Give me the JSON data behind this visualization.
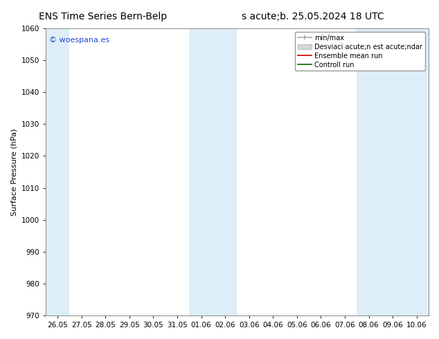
{
  "title_left": "ENS Time Series Bern-Belp",
  "title_right": "s acute;b. 25.05.2024 18 UTC",
  "ylabel": "Surface Pressure (hPa)",
  "ylim": [
    970,
    1060
  ],
  "yticks": [
    970,
    980,
    990,
    1000,
    1010,
    1020,
    1030,
    1040,
    1050,
    1060
  ],
  "x_labels": [
    "26.05",
    "27.05",
    "28.05",
    "29.05",
    "30.05",
    "31.05",
    "01.06",
    "02.06",
    "03.06",
    "04.06",
    "05.06",
    "06.06",
    "07.06",
    "08.06",
    "09.06",
    "10.06"
  ],
  "bg_color": "#ffffff",
  "plot_bg_color": "#ffffff",
  "band_color": "#ddeef8",
  "shaded_col_indices": [
    0,
    6,
    7,
    13,
    14,
    15
  ],
  "watermark": "© woespana.es",
  "legend_minmax_color": "#aaaaaa",
  "legend_std_color": "#cccccc",
  "legend_ensemble_color": "#cc0000",
  "legend_control_color": "#006600",
  "font_size_title": 10,
  "font_size_ylabel": 8,
  "font_size_tick": 7.5,
  "font_size_watermark": 8,
  "font_size_legend": 7,
  "n_days": 16
}
